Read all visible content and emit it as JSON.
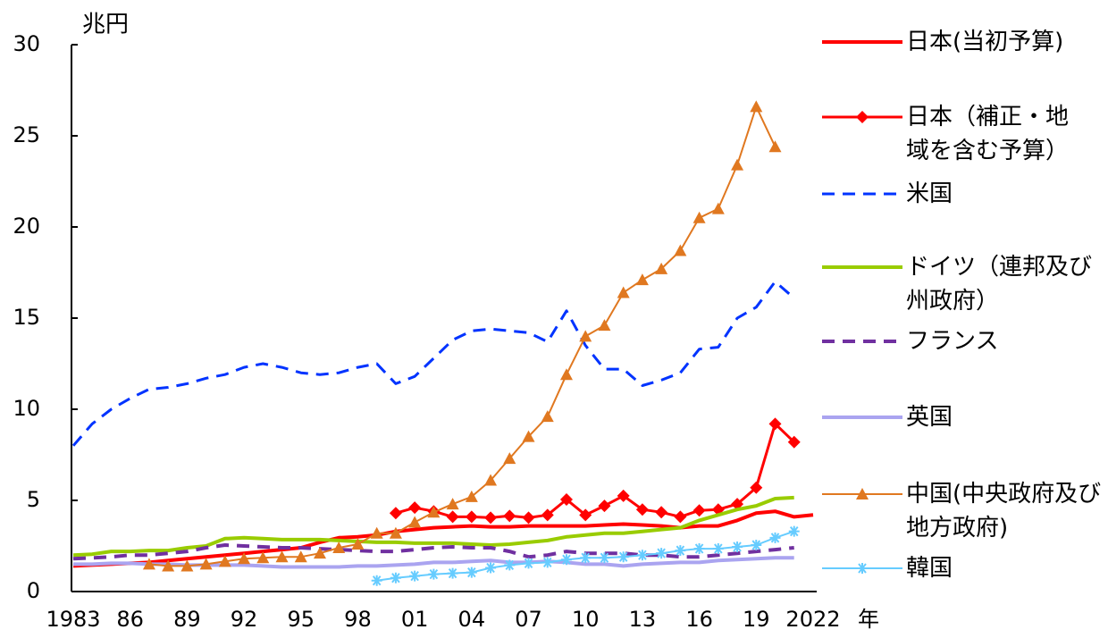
{
  "chart_data": {
    "type": "line",
    "y_label": "兆円",
    "x_label": "年",
    "categories": [
      "1983",
      null,
      null,
      "86",
      null,
      null,
      "89",
      null,
      null,
      "92",
      null,
      null,
      "95",
      null,
      null,
      "98",
      null,
      null,
      "01",
      null,
      null,
      "04",
      null,
      null,
      "07",
      null,
      null,
      "10",
      null,
      null,
      "13",
      null,
      null,
      "16",
      null,
      null,
      "19",
      null,
      null,
      "2022"
    ],
    "ylim": [
      0,
      30
    ],
    "yticks": [
      0,
      5,
      10,
      15,
      20,
      25,
      30
    ],
    "series": [
      {
        "name": "日本(当初予算)",
        "color": "#ff0000",
        "linewidth": 4,
        "values": [
          1.4,
          1.45,
          1.5,
          1.55,
          1.6,
          1.7,
          1.8,
          1.9,
          2.0,
          2.1,
          2.2,
          2.3,
          2.4,
          2.7,
          2.95,
          3.0,
          3.1,
          3.3,
          3.4,
          3.5,
          3.55,
          3.6,
          3.55,
          3.55,
          3.6,
          3.6,
          3.6,
          3.6,
          3.65,
          3.7,
          3.65,
          3.6,
          3.5,
          3.6,
          3.6,
          3.9,
          4.3,
          4.4,
          4.1,
          4.2
        ]
      },
      {
        "name": "日本（補正・地域を含む予算）",
        "color": "#ff0000",
        "linewidth": 3,
        "marker": "diamond",
        "values": [
          null,
          null,
          null,
          null,
          null,
          null,
          null,
          null,
          null,
          null,
          null,
          null,
          null,
          null,
          null,
          null,
          null,
          4.3,
          4.6,
          4.4,
          4.1,
          4.1,
          4.05,
          4.15,
          4.05,
          4.2,
          5.05,
          4.2,
          4.7,
          5.25,
          4.5,
          4.35,
          4.1,
          4.45,
          4.5,
          4.8,
          5.7,
          9.2,
          8.2,
          null
        ]
      },
      {
        "name": "米国",
        "color": "#0033ff",
        "linewidth": 3,
        "dash": true,
        "values": [
          8.0,
          9.2,
          10.0,
          10.6,
          11.1,
          11.2,
          11.4,
          11.7,
          11.9,
          12.3,
          12.5,
          12.3,
          12.0,
          11.9,
          12.0,
          12.3,
          12.5,
          11.4,
          11.8,
          12.8,
          13.8,
          14.3,
          14.4,
          14.3,
          14.2,
          13.7,
          15.4,
          13.5,
          12.2,
          12.2,
          11.3,
          11.6,
          12.0,
          13.3,
          13.4,
          15.0,
          15.6,
          17.0,
          16.1,
          null
        ]
      },
      {
        "name": "ドイツ（連邦及び州政府）",
        "color": "#99cc00",
        "linewidth": 4,
        "values": [
          2.0,
          2.05,
          2.2,
          2.2,
          2.25,
          2.25,
          2.4,
          2.5,
          2.9,
          2.95,
          2.9,
          2.85,
          2.85,
          2.85,
          2.8,
          2.75,
          2.7,
          2.7,
          2.65,
          2.65,
          2.65,
          2.6,
          2.55,
          2.6,
          2.7,
          2.8,
          3.0,
          3.1,
          3.2,
          3.2,
          3.3,
          3.4,
          3.5,
          3.9,
          4.2,
          4.5,
          4.7,
          5.1,
          5.15,
          null
        ]
      },
      {
        "name": "フランス",
        "color": "#7030a0",
        "linewidth": 4,
        "dash": true,
        "values": [
          1.8,
          1.85,
          1.9,
          2.0,
          2.0,
          2.1,
          2.2,
          2.4,
          2.55,
          2.5,
          2.45,
          2.4,
          2.4,
          2.35,
          2.3,
          2.25,
          2.2,
          2.2,
          2.3,
          2.4,
          2.45,
          2.4,
          2.4,
          2.2,
          1.9,
          2.0,
          2.2,
          2.1,
          2.1,
          2.1,
          2.0,
          2.0,
          1.9,
          1.9,
          2.0,
          2.1,
          2.2,
          2.3,
          2.4,
          null
        ]
      },
      {
        "name": "英国",
        "color": "#aaa4f0",
        "linewidth": 4,
        "values": [
          1.5,
          1.5,
          1.55,
          1.55,
          1.5,
          1.5,
          1.45,
          1.45,
          1.45,
          1.45,
          1.4,
          1.35,
          1.35,
          1.35,
          1.35,
          1.4,
          1.4,
          1.45,
          1.5,
          1.6,
          1.6,
          1.65,
          1.7,
          1.6,
          1.6,
          1.65,
          1.6,
          1.5,
          1.5,
          1.4,
          1.5,
          1.55,
          1.6,
          1.6,
          1.7,
          1.75,
          1.8,
          1.85,
          1.85,
          null
        ]
      },
      {
        "name": "中国(中央政府及び地方政府)",
        "color": "#e07820",
        "linewidth": 2,
        "marker": "triangle",
        "values": [
          null,
          null,
          null,
          null,
          1.5,
          1.4,
          1.4,
          1.5,
          1.65,
          1.8,
          1.85,
          1.9,
          1.9,
          2.1,
          2.4,
          2.6,
          3.2,
          3.2,
          3.8,
          4.35,
          4.8,
          5.2,
          6.1,
          7.3,
          8.5,
          9.6,
          11.9,
          14.0,
          14.6,
          16.4,
          17.1,
          17.7,
          18.7,
          20.5,
          21.0,
          23.4,
          26.6,
          24.4,
          null,
          null
        ]
      },
      {
        "name": "韓国",
        "color": "#66ccff",
        "linewidth": 2,
        "marker": "asterisk",
        "values": [
          null,
          null,
          null,
          null,
          null,
          null,
          null,
          null,
          null,
          null,
          null,
          null,
          null,
          null,
          null,
          null,
          0.6,
          0.75,
          0.85,
          0.95,
          1.0,
          1.05,
          1.3,
          1.45,
          1.55,
          1.6,
          1.75,
          1.85,
          1.85,
          1.9,
          2.0,
          2.1,
          2.25,
          2.35,
          2.35,
          2.45,
          2.55,
          2.95,
          3.3,
          null
        ]
      }
    ]
  }
}
